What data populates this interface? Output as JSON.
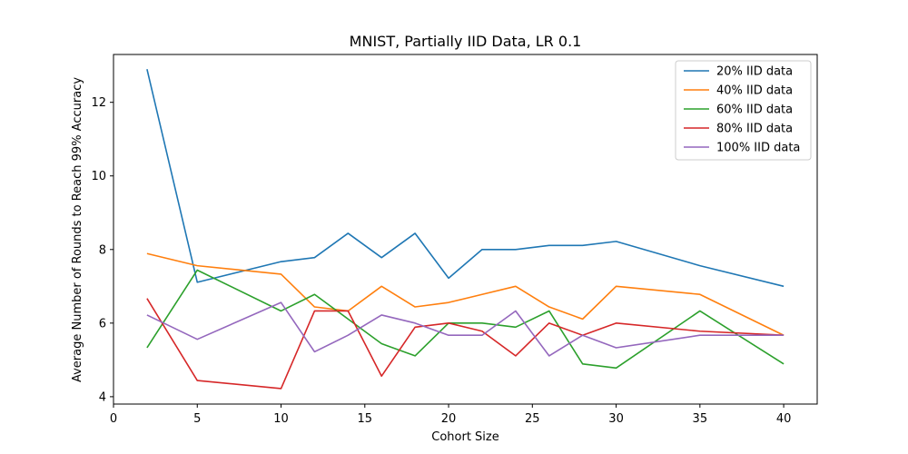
{
  "chart_data": {
    "type": "line",
    "title": "MNIST, Partially IID Data, LR 0.1",
    "xlabel": "Cohort Size",
    "ylabel": "Average Number of Rounds to Reach 99% Accuracy",
    "xlim": [
      0,
      42
    ],
    "ylim": [
      3.8,
      13.3
    ],
    "xticks": [
      0,
      5,
      10,
      15,
      20,
      25,
      30,
      35,
      40
    ],
    "yticks": [
      4,
      6,
      8,
      10,
      12
    ],
    "grid": false,
    "legend_position": "top-right",
    "x": [
      2,
      5,
      10,
      12,
      14,
      16,
      18,
      20,
      22,
      24,
      26,
      28,
      30,
      35,
      40
    ],
    "series": [
      {
        "name": "20% IID data",
        "color": "#1f77b4",
        "values": [
          12.9,
          7.11,
          7.67,
          7.78,
          8.44,
          7.78,
          8.44,
          7.22,
          8.0,
          8.0,
          8.11,
          8.11,
          8.22,
          7.56,
          7.0
        ]
      },
      {
        "name": "40% IID data",
        "color": "#ff7f0e",
        "values": [
          7.89,
          7.56,
          7.33,
          6.44,
          6.33,
          7.0,
          6.44,
          6.56,
          6.78,
          7.0,
          6.44,
          6.11,
          7.0,
          6.78,
          5.67
        ]
      },
      {
        "name": "60% IID data",
        "color": "#2ca02c",
        "values": [
          5.33,
          7.44,
          6.33,
          6.78,
          6.11,
          5.44,
          5.11,
          6.0,
          6.0,
          5.89,
          6.33,
          4.89,
          4.78,
          6.33,
          4.89
        ]
      },
      {
        "name": "80% IID data",
        "color": "#d62728",
        "values": [
          6.67,
          4.44,
          4.22,
          6.33,
          6.33,
          4.56,
          5.89,
          6.0,
          5.78,
          5.11,
          6.0,
          5.67,
          6.0,
          5.78,
          5.67
        ]
      },
      {
        "name": "100% IID data",
        "color": "#9467bd",
        "values": [
          6.22,
          5.56,
          6.56,
          5.22,
          5.67,
          6.22,
          6.0,
          5.67,
          5.67,
          6.33,
          5.11,
          5.67,
          5.33,
          5.67,
          5.67
        ]
      }
    ]
  }
}
